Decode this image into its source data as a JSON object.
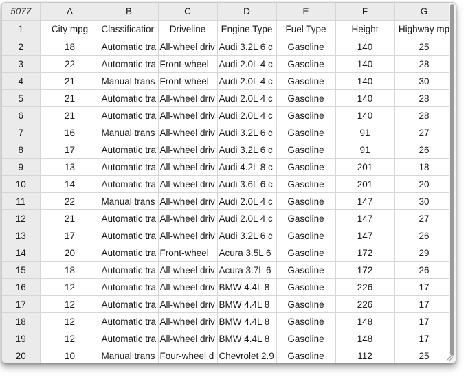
{
  "spreadsheet": {
    "row_count": "5077",
    "column_letters": [
      "A",
      "B",
      "C",
      "D",
      "E",
      "F",
      "G"
    ],
    "rows": [
      {
        "num": "1",
        "cells": [
          "City mpg",
          "Classificatior",
          "Driveline",
          "Engine Type",
          "Fuel Type",
          "Height",
          "Highway mp"
        ]
      },
      {
        "num": "2",
        "cells": [
          "18",
          "Automatic tra",
          "All-wheel driv",
          "Audi 3.2L 6 c",
          "Gasoline",
          "140",
          "25"
        ]
      },
      {
        "num": "3",
        "cells": [
          "22",
          "Automatic tra",
          "Front-wheel",
          "Audi 2.0L 4 c",
          "Gasoline",
          "140",
          "28"
        ]
      },
      {
        "num": "4",
        "cells": [
          "21",
          "Manual trans",
          "Front-wheel",
          "Audi 2.0L 4 c",
          "Gasoline",
          "140",
          "30"
        ]
      },
      {
        "num": "5",
        "cells": [
          "21",
          "Automatic tra",
          "All-wheel driv",
          "Audi 2.0L 4 c",
          "Gasoline",
          "140",
          "28"
        ]
      },
      {
        "num": "6",
        "cells": [
          "21",
          "Automatic tra",
          "All-wheel driv",
          "Audi 2.0L 4 c",
          "Gasoline",
          "140",
          "28"
        ]
      },
      {
        "num": "7",
        "cells": [
          "16",
          "Manual trans",
          "All-wheel driv",
          "Audi 3.2L 6 c",
          "Gasoline",
          "91",
          "27"
        ]
      },
      {
        "num": "8",
        "cells": [
          "17",
          "Automatic tra",
          "All-wheel driv",
          "Audi 3.2L 6 c",
          "Gasoline",
          "91",
          "26"
        ]
      },
      {
        "num": "9",
        "cells": [
          "13",
          "Automatic tra",
          "All-wheel driv",
          "Audi 4.2L 8 c",
          "Gasoline",
          "201",
          "18"
        ]
      },
      {
        "num": "10",
        "cells": [
          "14",
          "Automatic tra",
          "All-wheel driv",
          "Audi 3.6L 6 c",
          "Gasoline",
          "201",
          "20"
        ]
      },
      {
        "num": "11",
        "cells": [
          "22",
          "Manual trans",
          "All-wheel driv",
          "Audi 2.0L 4 c",
          "Gasoline",
          "147",
          "30"
        ]
      },
      {
        "num": "12",
        "cells": [
          "21",
          "Automatic tra",
          "All-wheel driv",
          "Audi 2.0L 4 c",
          "Gasoline",
          "147",
          "27"
        ]
      },
      {
        "num": "13",
        "cells": [
          "17",
          "Automatic tra",
          "All-wheel driv",
          "Audi 3.2L 6 c",
          "Gasoline",
          "147",
          "26"
        ]
      },
      {
        "num": "14",
        "cells": [
          "20",
          "Automatic tra",
          "Front-wheel",
          "Acura 3.5L 6",
          "Gasoline",
          "172",
          "29"
        ]
      },
      {
        "num": "15",
        "cells": [
          "18",
          "Automatic tra",
          "All-wheel driv",
          "Acura 3.7L 6",
          "Gasoline",
          "172",
          "26"
        ]
      },
      {
        "num": "16",
        "cells": [
          "12",
          "Automatic tra",
          "All-wheel driv",
          "BMW 4.4L 8",
          "Gasoline",
          "226",
          "17"
        ]
      },
      {
        "num": "17",
        "cells": [
          "12",
          "Automatic tra",
          "All-wheel driv",
          "BMW 4.4L 8",
          "Gasoline",
          "226",
          "17"
        ]
      },
      {
        "num": "18",
        "cells": [
          "12",
          "Automatic tra",
          "All-wheel driv",
          "BMW 4.4L 8",
          "Gasoline",
          "148",
          "17"
        ]
      },
      {
        "num": "19",
        "cells": [
          "12",
          "Automatic tra",
          "All-wheel driv",
          "BMW 4.4L 8",
          "Gasoline",
          "148",
          "17"
        ]
      },
      {
        "num": "20",
        "cells": [
          "10",
          "Manual trans",
          "Four-wheel d",
          "Chevrolet 2.9",
          "Gasoline",
          "112",
          "25"
        ]
      }
    ]
  },
  "colors": {
    "header_background": "#ebebeb",
    "grid_line": "#d6d6d6",
    "scrollbar_thumb": "#9a9a9a"
  },
  "icons": {
    "resize_grip": "resize-grip-icon"
  }
}
